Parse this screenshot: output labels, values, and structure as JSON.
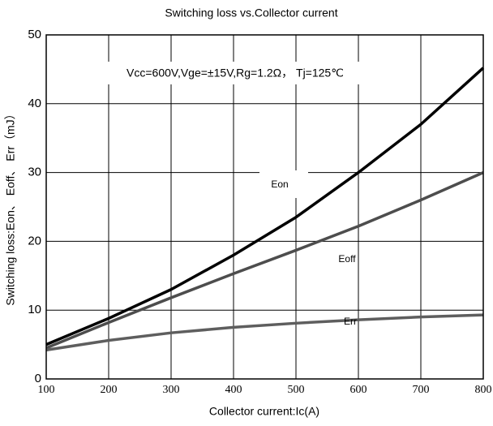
{
  "chart_data": {
    "type": "line",
    "title": "Switching loss vs.Collector current",
    "x_label": "Collector current:Ic(A)",
    "y_label": "Switching loss:Eon、 Eoff、 Err（mJ）",
    "annotation": "Vcc=600V,Vge=±15V,Rg=1.2Ω， Tj=125℃",
    "x": [
      100,
      200,
      300,
      400,
      500,
      600,
      700,
      800
    ],
    "series": [
      {
        "name": "Eon",
        "color": "#000000",
        "values": [
          5,
          8.8,
          13,
          18,
          23.5,
          30,
          37,
          45.2
        ]
      },
      {
        "name": "Eoff",
        "color": "#4d4d4d",
        "values": [
          4.5,
          8.2,
          11.8,
          15.3,
          18.7,
          22.2,
          26,
          30
        ]
      },
      {
        "name": "Err",
        "color": "#5e5e5e",
        "values": [
          4.2,
          5.6,
          6.7,
          7.5,
          8.1,
          8.6,
          9.0,
          9.3
        ]
      }
    ],
    "xlim": [
      100,
      800
    ],
    "xticks": [
      100,
      200,
      300,
      400,
      500,
      600,
      700,
      800
    ],
    "ylim": [
      0,
      50
    ],
    "yticks": [
      0,
      10,
      20,
      30,
      40,
      50
    ],
    "grid": true
  }
}
